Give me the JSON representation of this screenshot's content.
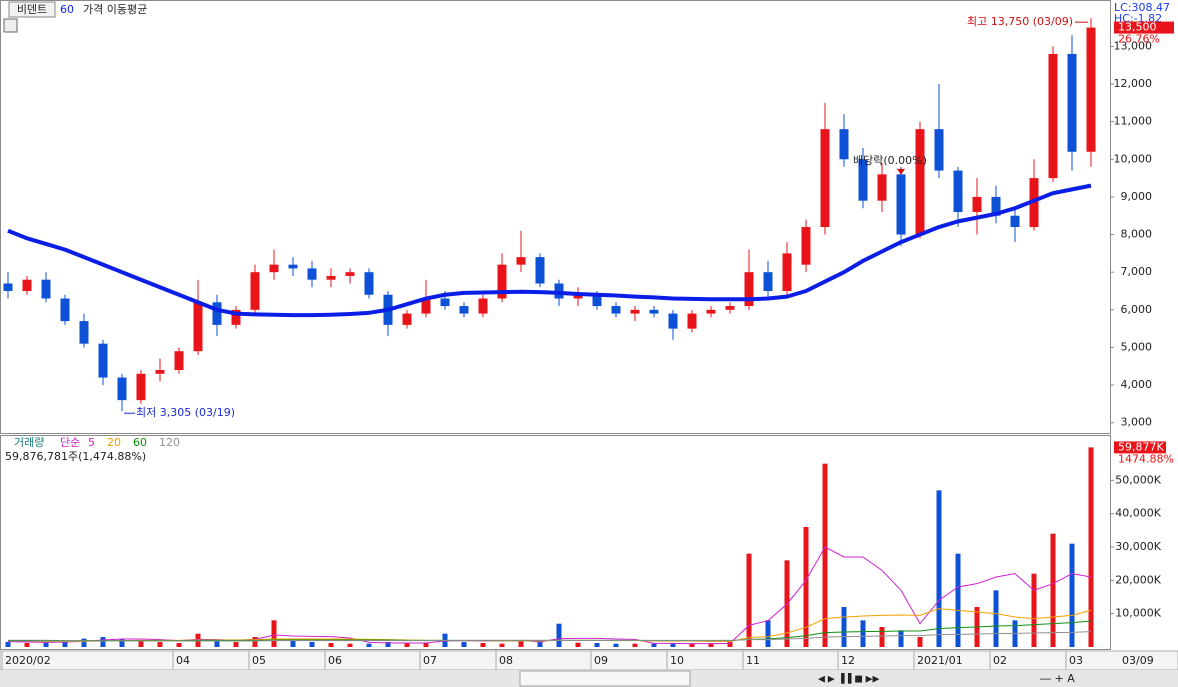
{
  "chart_data": [
    {
      "type": "candlestick",
      "title": "비덴트",
      "indicator": "가격 이동평균",
      "categories": [
        "2020/02",
        null,
        null,
        null,
        null,
        null,
        null,
        null,
        null,
        "04",
        null,
        null,
        null,
        "05",
        null,
        null,
        null,
        "06",
        null,
        null,
        null,
        null,
        "07",
        null,
        null,
        null,
        "08",
        null,
        null,
        null,
        null,
        "09",
        null,
        null,
        null,
        "10",
        null,
        null,
        null,
        "11",
        null,
        null,
        null,
        null,
        "12",
        null,
        null,
        null,
        "2021/01",
        null,
        null,
        null,
        "02",
        null,
        null,
        null,
        "03",
        null
      ],
      "open": [
        6700,
        6500,
        6800,
        6300,
        5700,
        5100,
        4200,
        3600,
        4300,
        4400,
        4900,
        6200,
        5600,
        6000,
        7000,
        7200,
        7100,
        6800,
        6900,
        7000,
        6400,
        5600,
        5900,
        6300,
        6100,
        5900,
        6300,
        7200,
        7400,
        6700,
        6300,
        6400,
        6100,
        5900,
        6000,
        5900,
        5500,
        5900,
        6000,
        6100,
        7000,
        6500,
        7200,
        8200,
        10800,
        10000,
        8900,
        9600,
        8000,
        10800,
        9700,
        8600,
        9000,
        8500,
        8200,
        9500,
        12800,
        10200
      ],
      "high": [
        7000,
        6900,
        7000,
        6400,
        5900,
        5200,
        4300,
        4400,
        4700,
        5000,
        6800,
        6400,
        6100,
        7200,
        7600,
        7400,
        7300,
        7100,
        7100,
        7100,
        6500,
        6000,
        6800,
        6500,
        6200,
        6400,
        7500,
        8100,
        7500,
        6800,
        6600,
        6500,
        6200,
        6100,
        6100,
        6000,
        6000,
        6100,
        6200,
        7600,
        7300,
        7800,
        8400,
        11500,
        11200,
        10300,
        9900,
        9800,
        11000,
        12000,
        9800,
        9500,
        9300,
        8700,
        10000,
        13000,
        13300,
        13750
      ],
      "low": [
        6300,
        6400,
        6200,
        5600,
        5000,
        4000,
        3305,
        3500,
        4100,
        4300,
        4800,
        5300,
        5500,
        5900,
        6800,
        6900,
        6600,
        6600,
        6700,
        6300,
        5300,
        5500,
        5800,
        6000,
        5800,
        5800,
        6200,
        7000,
        6600,
        6100,
        6100,
        6000,
        5800,
        5700,
        5800,
        5200,
        5400,
        5800,
        5900,
        6000,
        6300,
        6400,
        7000,
        8000,
        9800,
        8700,
        8600,
        7700,
        7900,
        9500,
        8200,
        8000,
        8300,
        7800,
        8100,
        9400,
        9700,
        9800
      ],
      "close": [
        6500,
        6800,
        6300,
        5700,
        5100,
        4200,
        3600,
        4300,
        4400,
        4900,
        6200,
        5600,
        6000,
        7000,
        7200,
        7100,
        6800,
        6900,
        7000,
        6400,
        5600,
        5900,
        6300,
        6100,
        5900,
        6300,
        7200,
        7400,
        6700,
        6300,
        6400,
        6100,
        5900,
        6000,
        5900,
        5500,
        5900,
        6000,
        6100,
        7000,
        6500,
        7500,
        8200,
        10800,
        10000,
        8900,
        9600,
        8000,
        10800,
        9700,
        8600,
        9000,
        8500,
        8200,
        9500,
        12800,
        10200,
        13500
      ],
      "series": [
        {
          "name": "60",
          "color": "#0a1ee6",
          "values": [
            8100,
            7900,
            7750,
            7600,
            7400,
            7200,
            7000,
            6800,
            6600,
            6400,
            6200,
            6000,
            5900,
            5880,
            5870,
            5860,
            5860,
            5870,
            5890,
            5920,
            6000,
            6150,
            6300,
            6400,
            6450,
            6460,
            6470,
            6480,
            6470,
            6450,
            6420,
            6400,
            6380,
            6350,
            6330,
            6300,
            6290,
            6280,
            6280,
            6280,
            6300,
            6350,
            6500,
            6750,
            7000,
            7300,
            7550,
            7800,
            8000,
            8200,
            8350,
            8450,
            8550,
            8700,
            8900,
            9100,
            9200,
            9300
          ]
        }
      ],
      "ylim": [
        2700,
        14100
      ],
      "yticks": [
        {
          "value": 3000,
          "label": "3,000"
        },
        {
          "value": 4000,
          "label": "4,000"
        },
        {
          "value": 5000,
          "label": "5,000"
        },
        {
          "value": 6000,
          "label": "6,000"
        },
        {
          "value": 7000,
          "label": "7,000"
        },
        {
          "value": 8000,
          "label": "8,000"
        },
        {
          "value": 9000,
          "label": "9,000"
        },
        {
          "value": 10000,
          "label": "10,000"
        },
        {
          "value": 11000,
          "label": "11,000"
        },
        {
          "value": 12000,
          "label": "12,000"
        },
        {
          "value": 13000,
          "label": "13,000"
        }
      ],
      "up_color": "#e8141a",
      "down_color": "#0d52d6",
      "high_label": "최고 13,750 (03/09)",
      "low_label": "최저 3,305 (03/19)",
      "dividend_label": "배당락(0.00%)",
      "last_label": "13,500",
      "change_label": "26.76%",
      "lc_label": "LC:308.47",
      "hc_label": "HC:-1.82",
      "cursor_date": "03/09"
    },
    {
      "type": "bar",
      "title": "거래량",
      "ma_label": "단순",
      "values": [
        1500,
        1200,
        1300,
        1800,
        2500,
        3000,
        2500,
        2000,
        1500,
        1200,
        4000,
        2000,
        1500,
        3000,
        8000,
        2000,
        1500,
        1200,
        1000,
        1000,
        1500,
        1200,
        1200,
        4000,
        1500,
        1200,
        1000,
        2000,
        1500,
        7000,
        1300,
        1200,
        1000,
        1000,
        1000,
        1200,
        1000,
        1000,
        1500,
        28000,
        8000,
        26000,
        36000,
        55000,
        12000,
        8000,
        6000,
        5000,
        3000,
        47000,
        28000,
        12000,
        17000,
        8000,
        22000,
        34000,
        31000,
        59877
      ],
      "value_label": "59,876,781주(1,474.88%)",
      "last_label": "59,877K",
      "ratio_label": "1474.88%",
      "series": [
        {
          "name": "5",
          "color": "#d020d0",
          "values": [
            1600,
            1500,
            1400,
            1500,
            1700,
            2100,
            2400,
            2400,
            2200,
            1900,
            2300,
            2200,
            2000,
            2300,
            3600,
            3300,
            3200,
            3100,
            2700,
            1400,
            1200,
            1200,
            1200,
            1800,
            1900,
            1800,
            1800,
            2000,
            1500,
            2500,
            2600,
            2600,
            2400,
            2300,
            1100,
            1100,
            1000,
            1000,
            1100,
            6500,
            7900,
            12900,
            20000,
            30000,
            27000,
            27000,
            23000,
            17000,
            7000,
            14000,
            18000,
            19000,
            21000,
            22000,
            17000,
            19000,
            22000,
            21000
          ]
        },
        {
          "name": "20",
          "color": "#f0a000",
          "values": [
            1800,
            1800,
            1700,
            1700,
            1700,
            1800,
            1900,
            2000,
            2000,
            2000,
            2100,
            2100,
            2100,
            2200,
            2400,
            2400,
            2400,
            2400,
            2400,
            2300,
            2200,
            2100,
            2000,
            2000,
            1900,
            1900,
            1800,
            1800,
            1800,
            2000,
            2000,
            2000,
            1900,
            1900,
            1800,
            1800,
            1800,
            1700,
            1700,
            2800,
            3100,
            4200,
            5900,
            8500,
            9000,
            9300,
            9500,
            9600,
            9500,
            11500,
            11000,
            10500,
            10000,
            9000,
            8500,
            9000,
            9500,
            11000
          ]
        },
        {
          "name": "60",
          "color": "#109010",
          "values": [
            2000,
            2000,
            2000,
            1900,
            1900,
            1900,
            1900,
            1900,
            1900,
            1900,
            2000,
            2000,
            2000,
            2000,
            2100,
            2100,
            2100,
            2100,
            2100,
            2100,
            2100,
            2000,
            2000,
            2000,
            2000,
            2000,
            2000,
            2000,
            2000,
            2000,
            2000,
            2000,
            2000,
            2000,
            1900,
            1900,
            1900,
            1900,
            1900,
            2300,
            2400,
            2800,
            3400,
            4300,
            4500,
            4600,
            4700,
            4800,
            4800,
            5500,
            5800,
            6000,
            6300,
            6400,
            6700,
            7000,
            7300,
            7800
          ]
        },
        {
          "name": "120",
          "color": "#909090",
          "values": [
            1800,
            1800,
            1800,
            1800,
            1800,
            1800,
            1800,
            1800,
            1800,
            1800,
            1800,
            1800,
            1800,
            1800,
            1900,
            1900,
            1900,
            1900,
            1900,
            1900,
            1900,
            1900,
            1900,
            1900,
            1900,
            1900,
            1900,
            1900,
            1900,
            2000,
            2000,
            2000,
            2000,
            2000,
            2000,
            2000,
            2000,
            2000,
            2000,
            2200,
            2200,
            2400,
            2600,
            3000,
            3100,
            3200,
            3300,
            3400,
            3400,
            3700,
            3800,
            3900,
            4000,
            4100,
            4200,
            4300,
            4400,
            4600
          ]
        }
      ],
      "ylim": [
        0,
        63000
      ],
      "yticks": [
        {
          "value": 10000,
          "label": "10,000K"
        },
        {
          "value": 20000,
          "label": "20,000K"
        },
        {
          "value": 30000,
          "label": "30,000K"
        },
        {
          "value": 40000,
          "label": "40,000K"
        },
        {
          "value": 50000,
          "label": "50,000K"
        }
      ]
    }
  ]
}
